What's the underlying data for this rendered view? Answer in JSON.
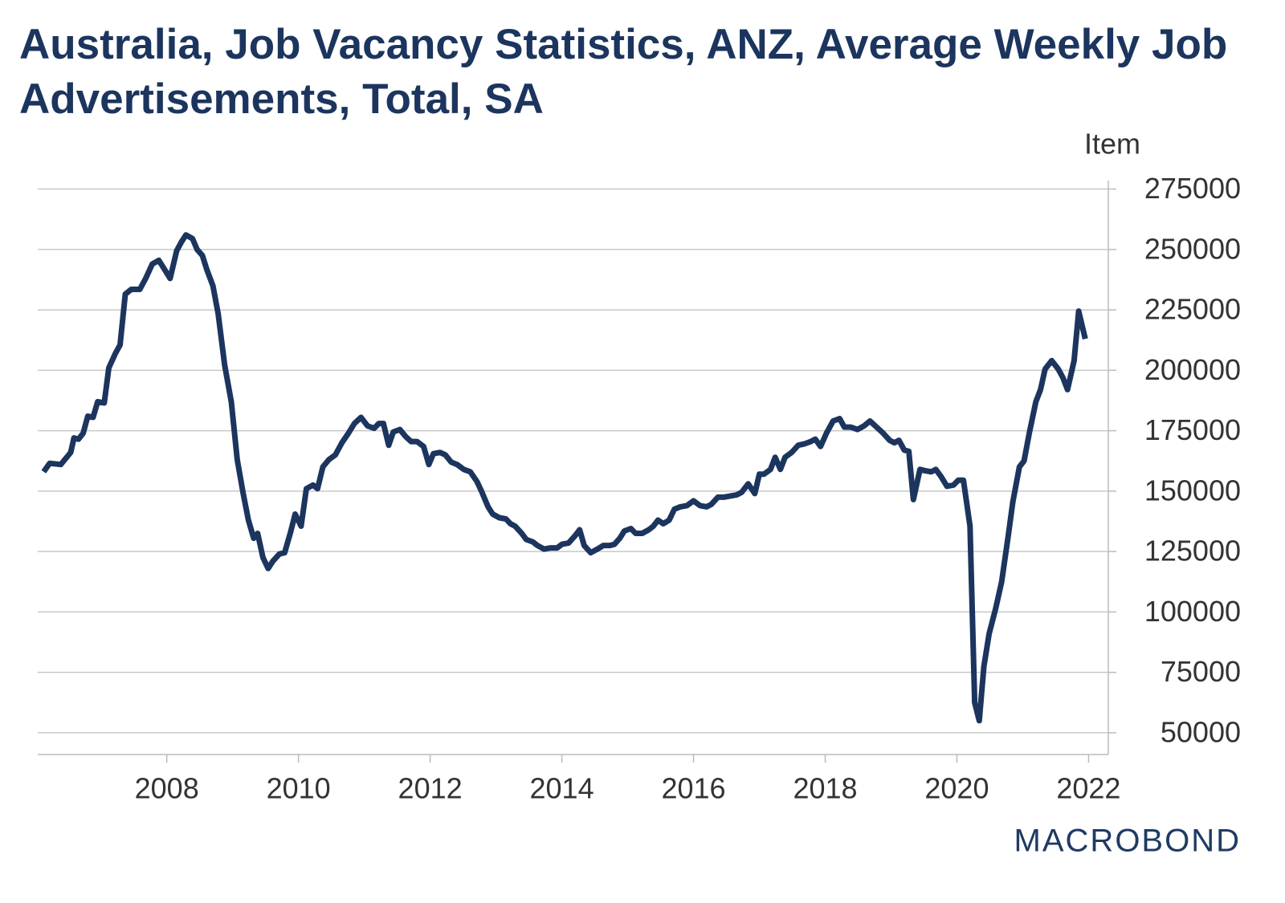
{
  "chart_data": {
    "type": "line",
    "title": "Australia, Job Vacancy Statistics, ANZ, Average Weekly Job Advertisements, Total, SA",
    "y_axis_label": "Item",
    "logo": "MACROBOND",
    "xlim": [
      2006.04,
      2022.3
    ],
    "xticks": [
      2008,
      2010,
      2012,
      2014,
      2016,
      2018,
      2020,
      2022
    ],
    "ylim": [
      41000,
      278500
    ],
    "yticks": [
      50000,
      75000,
      100000,
      125000,
      150000,
      175000,
      200000,
      225000,
      250000,
      275000
    ],
    "grid": true,
    "series": [
      {
        "name": "Job Advertisements",
        "color": "#1c355e",
        "x": [
          2006.13,
          2006.22,
          2006.39,
          2006.54,
          2006.59,
          2006.66,
          2006.73,
          2006.8,
          2006.88,
          2006.95,
          2007.05,
          2007.12,
          2007.22,
          2007.29,
          2007.37,
          2007.46,
          2007.59,
          2007.68,
          2007.78,
          2007.88,
          2007.96,
          2008.05,
          2008.15,
          2008.22,
          2008.29,
          2008.39,
          2008.46,
          2008.54,
          2008.61,
          2008.7,
          2008.78,
          2008.88,
          2008.98,
          2009.07,
          2009.16,
          2009.24,
          2009.32,
          2009.38,
          2009.46,
          2009.54,
          2009.61,
          2009.71,
          2009.79,
          2009.88,
          2009.95,
          2010.04,
          2010.12,
          2010.22,
          2010.29,
          2010.37,
          2010.46,
          2010.56,
          2010.66,
          2010.76,
          2010.85,
          2010.95,
          2011.05,
          2011.15,
          2011.22,
          2011.29,
          2011.37,
          2011.44,
          2011.54,
          2011.63,
          2011.71,
          2011.8,
          2011.9,
          2011.98,
          2012.05,
          2012.15,
          2012.23,
          2012.32,
          2012.41,
          2012.51,
          2012.61,
          2012.71,
          2012.78,
          2012.88,
          2012.95,
          2013.05,
          2013.15,
          2013.22,
          2013.29,
          2013.39,
          2013.46,
          2013.56,
          2013.63,
          2013.73,
          2013.83,
          2013.93,
          2014.0,
          2014.1,
          2014.2,
          2014.27,
          2014.34,
          2014.44,
          2014.54,
          2014.63,
          2014.73,
          2014.8,
          2014.88,
          2014.95,
          2015.05,
          2015.12,
          2015.22,
          2015.32,
          2015.39,
          2015.46,
          2015.54,
          2015.63,
          2015.71,
          2015.8,
          2015.9,
          2016.0,
          2016.1,
          2016.2,
          2016.27,
          2016.37,
          2016.46,
          2016.56,
          2016.66,
          2016.73,
          2016.83,
          2016.93,
          2017.0,
          2017.07,
          2017.17,
          2017.24,
          2017.32,
          2017.39,
          2017.49,
          2017.59,
          2017.68,
          2017.78,
          2017.85,
          2017.93,
          2018.02,
          2018.12,
          2018.22,
          2018.29,
          2018.39,
          2018.49,
          2018.59,
          2018.68,
          2018.78,
          2018.88,
          2018.98,
          2019.05,
          2019.12,
          2019.2,
          2019.27,
          2019.34,
          2019.44,
          2019.51,
          2019.61,
          2019.68,
          2019.76,
          2019.85,
          2019.95,
          2020.02,
          2020.1,
          2020.2,
          2020.27,
          2020.34,
          2020.41,
          2020.49,
          2020.59,
          2020.68,
          2020.78,
          2020.85,
          2020.95,
          2021.02,
          2021.1,
          2021.2,
          2021.27,
          2021.34,
          2021.44,
          2021.54,
          2021.61,
          2021.68,
          2021.78,
          2021.85,
          2021.95
        ],
        "values": [
          158000,
          161500,
          161000,
          166000,
          172000,
          171500,
          174000,
          181000,
          180500,
          187000,
          186500,
          201000,
          207000,
          210500,
          231500,
          233500,
          233500,
          238000,
          244000,
          245500,
          242000,
          238000,
          249500,
          253000,
          256000,
          254500,
          250000,
          247500,
          241500,
          235000,
          223500,
          202000,
          187000,
          163000,
          149000,
          138000,
          130500,
          132500,
          122500,
          118000,
          121000,
          124000,
          124500,
          133000,
          140500,
          135500,
          151000,
          152500,
          151000,
          160000,
          163000,
          165000,
          170000,
          174000,
          178000,
          180500,
          177000,
          176000,
          178000,
          178000,
          169000,
          174500,
          175500,
          172500,
          170500,
          170500,
          168500,
          161000,
          165500,
          166000,
          165000,
          162000,
          161000,
          159000,
          158000,
          154000,
          150000,
          143500,
          140500,
          139000,
          138500,
          136500,
          135500,
          132500,
          130000,
          129000,
          127500,
          126000,
          126500,
          126500,
          128000,
          128500,
          131500,
          134000,
          127500,
          124500,
          126000,
          127500,
          127500,
          128000,
          130500,
          133500,
          134500,
          132500,
          132500,
          134000,
          135500,
          138000,
          136500,
          138000,
          142500,
          143500,
          144000,
          146000,
          144000,
          143500,
          144500,
          147500,
          147500,
          148000,
          148500,
          149500,
          153000,
          149000,
          157000,
          157000,
          159000,
          164000,
          159000,
          164000,
          166000,
          169000,
          169500,
          170500,
          171500,
          168500,
          174000,
          179000,
          180000,
          176500,
          176500,
          175500,
          177000,
          179000,
          176500,
          174000,
          171000,
          170000,
          171000,
          167000,
          166500,
          146500,
          159000,
          158500,
          158000,
          159000,
          156000,
          152000,
          152500,
          154500,
          154500,
          135500,
          62500,
          55000,
          77500,
          91000,
          101500,
          112500,
          131500,
          145500,
          160000,
          162500,
          174000,
          187000,
          192000,
          200500,
          204000,
          200500,
          197000,
          192000,
          204000,
          224500,
          213000
        ]
      }
    ]
  }
}
